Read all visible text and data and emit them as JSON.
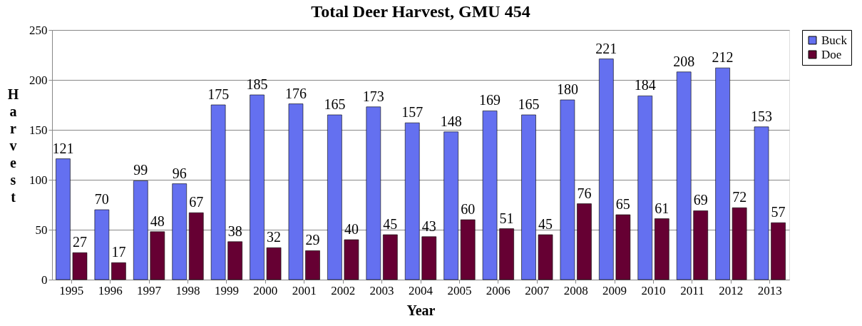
{
  "chart_data": {
    "type": "bar",
    "title": "Total Deer Harvest, GMU 454",
    "xlabel": "Year",
    "ylabel": "Harvest",
    "categories": [
      "1995",
      "1996",
      "1997",
      "1998",
      "1999",
      "2000",
      "2001",
      "2002",
      "2003",
      "2004",
      "2005",
      "2006",
      "2007",
      "2008",
      "2009",
      "2010",
      "2011",
      "2012",
      "2013"
    ],
    "series": [
      {
        "name": "Buck",
        "color": "#6470f0",
        "values": [
          121,
          70,
          99,
          96,
          175,
          185,
          176,
          165,
          173,
          157,
          148,
          169,
          165,
          180,
          221,
          184,
          208,
          212,
          153
        ]
      },
      {
        "name": "Doe",
        "color": "#660033",
        "values": [
          27,
          17,
          48,
          67,
          38,
          32,
          29,
          40,
          45,
          43,
          60,
          51,
          45,
          76,
          65,
          61,
          69,
          72,
          57
        ]
      }
    ],
    "ylim": [
      0,
      250
    ],
    "yticks": [
      0,
      50,
      100,
      150,
      200,
      250
    ],
    "grid": "y",
    "legend": "right",
    "data_labels": true
  }
}
